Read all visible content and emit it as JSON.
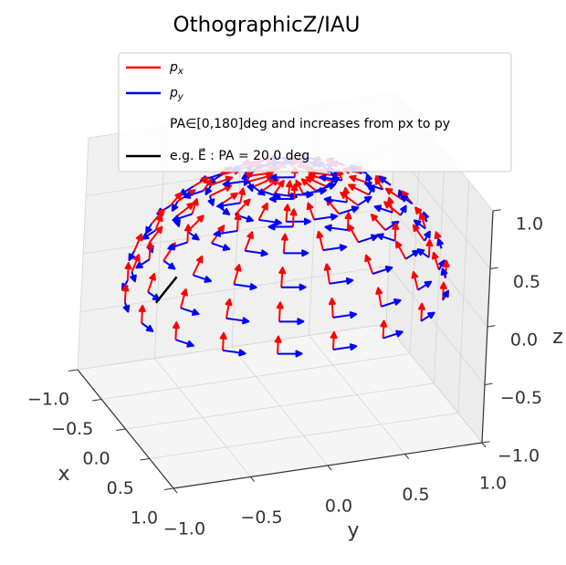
{
  "chart_data": {
    "type": "quiver3d",
    "title": "OthographicZ/IAU",
    "xlabel": "x",
    "ylabel": "y",
    "zlabel": "z",
    "xlim": [
      -1,
      1
    ],
    "ylim": [
      -1,
      1
    ],
    "zlim": [
      -1,
      1
    ],
    "xticks": [
      {
        "value": -1,
        "label": "−1.0"
      },
      {
        "value": -0.5,
        "label": "−0.5"
      },
      {
        "value": 0,
        "label": "0.0"
      },
      {
        "value": 0.5,
        "label": "0.5"
      },
      {
        "value": 1,
        "label": "1.0"
      }
    ],
    "yticks": [
      {
        "value": -1,
        "label": "−1.0"
      },
      {
        "value": -0.5,
        "label": "−0.5"
      },
      {
        "value": 0,
        "label": "0.0"
      },
      {
        "value": 0.5,
        "label": "0.5"
      },
      {
        "value": 1,
        "label": "1.0"
      }
    ],
    "zticks": [
      {
        "value": -1,
        "label": "−1.0"
      },
      {
        "value": -0.5,
        "label": "−0.5"
      },
      {
        "value": 0,
        "label": "0.0"
      },
      {
        "value": 0.5,
        "label": "0.5"
      },
      {
        "value": 1,
        "label": "1.0"
      }
    ],
    "grid": true,
    "legend": "upper center",
    "series": [
      {
        "name": "px",
        "color": "#ff0000"
      },
      {
        "name": "py",
        "color": "#0000ff"
      }
    ],
    "note": "PA∈[0,180]deg and increases from px to py",
    "example": {
      "label": "e.g. E⃗ : PA = 20.0 deg",
      "color": "#000000",
      "pa": 20,
      "lon": -70,
      "colat": 70
    },
    "longitudes": [
      0,
      20,
      40,
      60,
      80,
      100,
      120,
      140,
      160,
      180,
      200,
      220,
      240,
      260,
      280,
      300,
      320,
      340
    ],
    "colatitudes": [
      15,
      30,
      45,
      60,
      75,
      90
    ]
  }
}
